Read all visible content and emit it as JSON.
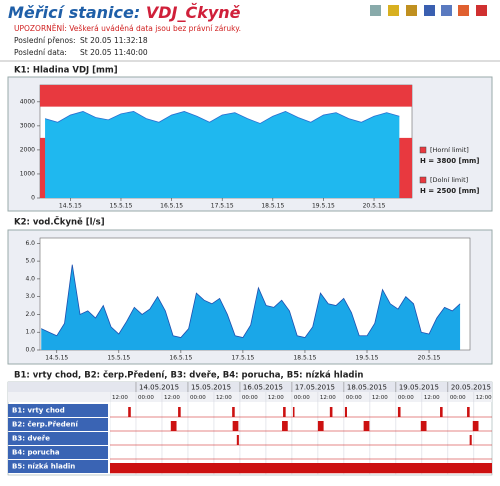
{
  "header": {
    "title_prefix": "Měřicí stanice:",
    "station": "VDJ_Čkyně",
    "warning": "UPOZORNĚNÍ: Veškerá uváděná data jsou bez právní záruky.",
    "last_transfer_label": "Poslední přenos:",
    "last_transfer": "St 20.05 11:32:18",
    "last_data_label": "Poslední data:",
    "last_data": "St 20.05 11:40:00"
  },
  "charts": [
    {
      "type": "area",
      "title": "K1: Hladina VDJ [mm]",
      "color": "#1fb8ef",
      "line_color": "#2a6fd0",
      "xlim": [
        13.4,
        20.75
      ],
      "xticks": [
        {
          "value": 14,
          "label": "14.5.15"
        },
        {
          "value": 15,
          "label": "15.5.15"
        },
        {
          "value": 16,
          "label": "16.5.15"
        },
        {
          "value": 17,
          "label": "17.5.15"
        },
        {
          "value": 18,
          "label": "18.5.15"
        },
        {
          "value": 19,
          "label": "19.5.15"
        },
        {
          "value": 20,
          "label": "20.5.15"
        }
      ],
      "ylim": [
        0,
        4700
      ],
      "yticks": [
        0,
        1000,
        2000,
        3000,
        4000
      ],
      "x": [
        13.5,
        13.75,
        14,
        14.25,
        14.5,
        14.75,
        15,
        15.25,
        15.5,
        15.75,
        16,
        16.25,
        16.5,
        16.75,
        17,
        17.25,
        17.5,
        17.75,
        18,
        18.25,
        18.5,
        18.75,
        19,
        19.25,
        19.5,
        19.75,
        20,
        20.25,
        20.5
      ],
      "values": [
        3300,
        3150,
        3450,
        3600,
        3350,
        3250,
        3500,
        3600,
        3300,
        3150,
        3450,
        3600,
        3400,
        3150,
        3450,
        3550,
        3300,
        3100,
        3400,
        3600,
        3350,
        3150,
        3450,
        3550,
        3300,
        3150,
        3400,
        3550,
        3400
      ],
      "limits": [
        {
          "name": "[Horní limit]",
          "value": 3800,
          "value_label": "H = 3800 [mm]",
          "side": "above",
          "color": "#e8393f"
        },
        {
          "name": "[Dolní limit]",
          "value": 2500,
          "value_label": "H = 2500 [mm]",
          "side": "below",
          "color": "#e8393f"
        }
      ]
    },
    {
      "type": "area",
      "title": "K2: vod.Čkyně [l/s]",
      "color": "#1aa7e8",
      "line_color": "#1e4fb0",
      "xlim": [
        13.73,
        20.66
      ],
      "xticks": [
        {
          "value": 14,
          "label": "14.5.15"
        },
        {
          "value": 15,
          "label": "15.5.15"
        },
        {
          "value": 16,
          "label": "16.5.15"
        },
        {
          "value": 17,
          "label": "17.5.15"
        },
        {
          "value": 18,
          "label": "18.5.15"
        },
        {
          "value": 19,
          "label": "19.5.15"
        },
        {
          "value": 20,
          "label": "20.5.15"
        }
      ],
      "ylim": [
        0,
        6.3
      ],
      "yticks": [
        {
          "value": 0,
          "label": "0.0"
        },
        {
          "value": 1,
          "label": "1.0"
        },
        {
          "value": 2,
          "label": "2.0"
        },
        {
          "value": 3,
          "label": "3.0"
        },
        {
          "value": 4,
          "label": "4.0"
        },
        {
          "value": 5,
          "label": "5.0"
        },
        {
          "value": 6,
          "label": "6.0"
        }
      ],
      "x": [
        13.75,
        13.875,
        14,
        14.125,
        14.25,
        14.375,
        14.5,
        14.625,
        14.75,
        14.875,
        15,
        15.125,
        15.25,
        15.375,
        15.5,
        15.625,
        15.75,
        15.875,
        16,
        16.125,
        16.25,
        16.375,
        16.5,
        16.625,
        16.75,
        16.875,
        17,
        17.125,
        17.25,
        17.375,
        17.5,
        17.625,
        17.75,
        17.875,
        18,
        18.125,
        18.25,
        18.375,
        18.5,
        18.625,
        18.75,
        18.875,
        19,
        19.125,
        19.25,
        19.375,
        19.5,
        19.625,
        19.75,
        19.875,
        20,
        20.125,
        20.25,
        20.375,
        20.5
      ],
      "values": [
        1.2,
        1.0,
        0.8,
        1.5,
        4.8,
        2.0,
        2.2,
        1.8,
        2.5,
        1.3,
        0.9,
        1.6,
        2.4,
        2.0,
        2.3,
        3.0,
        2.2,
        0.8,
        0.7,
        1.2,
        3.2,
        2.8,
        2.6,
        2.9,
        2.0,
        0.8,
        0.7,
        1.4,
        3.5,
        2.5,
        2.4,
        2.8,
        2.2,
        0.8,
        0.7,
        1.3,
        3.2,
        2.6,
        2.5,
        2.9,
        2.1,
        0.8,
        0.8,
        1.5,
        3.4,
        2.6,
        2.3,
        3.0,
        2.6,
        1.0,
        0.9,
        1.8,
        2.4,
        2.2,
        2.6
      ]
    }
  ],
  "events_table": {
    "title": "B1: vrty chod, B2: čerp.Předení, B3: dveře, B4: porucha, B5: nízká hladin",
    "xlim": [
      13.5,
      20.85
    ],
    "dates": [
      {
        "value": 14,
        "label": "14.05.2015"
      },
      {
        "value": 15,
        "label": "15.05.2015"
      },
      {
        "value": 16,
        "label": "16.05.2015"
      },
      {
        "value": 17,
        "label": "17.05.2015"
      },
      {
        "value": 18,
        "label": "18.05.2015"
      },
      {
        "value": 19,
        "label": "19.05.2015"
      },
      {
        "value": 20,
        "label": "20.05.2015"
      }
    ],
    "hours": [
      {
        "value": 13.5,
        "label": "12:00"
      },
      {
        "value": 14,
        "label": "00:00"
      },
      {
        "value": 14.5,
        "label": "12:00"
      },
      {
        "value": 15,
        "label": "00:00"
      },
      {
        "value": 15.5,
        "label": "12:00"
      },
      {
        "value": 16,
        "label": "00:00"
      },
      {
        "value": 16.5,
        "label": "12:00"
      },
      {
        "value": 17,
        "label": "00:00"
      },
      {
        "value": 17.5,
        "label": "12:00"
      },
      {
        "value": 18,
        "label": "00:00"
      },
      {
        "value": 18.5,
        "label": "12:00"
      },
      {
        "value": 19,
        "label": "00:00"
      },
      {
        "value": 19.5,
        "label": "12:00"
      },
      {
        "value": 20,
        "label": "00:00"
      },
      {
        "value": 20.5,
        "label": "12:00"
      }
    ],
    "color": "#cc1111",
    "rows": [
      {
        "name": "B1: vrty chod",
        "events": [
          [
            13.85,
            13.9
          ],
          [
            14.81,
            14.86
          ],
          [
            15.85,
            15.9
          ],
          [
            16.83,
            16.88
          ],
          [
            17.02,
            17.05
          ],
          [
            17.73,
            17.78
          ],
          [
            18.02,
            18.06
          ],
          [
            19.04,
            19.09
          ],
          [
            19.85,
            19.9
          ],
          [
            20.37,
            20.42
          ]
        ]
      },
      {
        "name": "B2: čerp.Předení",
        "events": [
          [
            14.67,
            14.78
          ],
          [
            15.86,
            15.97
          ],
          [
            16.81,
            16.92
          ],
          [
            17.5,
            17.61
          ],
          [
            18.38,
            18.49
          ],
          [
            19.48,
            19.59
          ],
          [
            20.48,
            20.59
          ]
        ]
      },
      {
        "name": "B3: dveře",
        "events": [
          [
            15.94,
            15.98
          ],
          [
            20.42,
            20.46
          ]
        ]
      },
      {
        "name": "B4: porucha",
        "events": []
      },
      {
        "name": "B5: nízká hladin",
        "events": [
          [
            13.5,
            20.85
          ]
        ]
      }
    ]
  }
}
